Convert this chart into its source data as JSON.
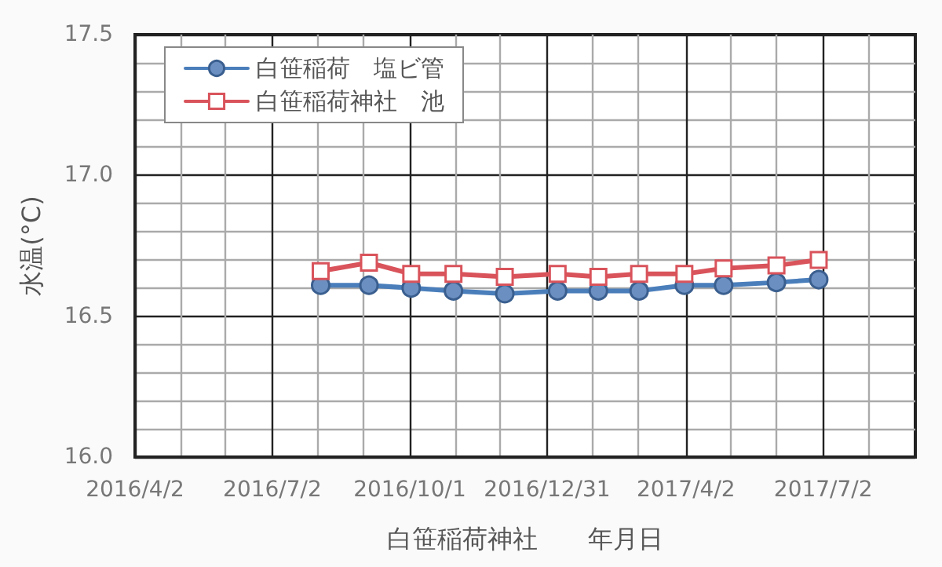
{
  "chart_data": {
    "type": "line",
    "xlabel": "白笹稲荷神社　　年月日",
    "ylabel": "水温(°C)",
    "x": [
      "2016-08-03",
      "2016-09-04",
      "2016-10-02",
      "2016-10-30",
      "2016-12-03",
      "2017-01-07",
      "2017-02-03",
      "2017-03-02",
      "2017-04-01",
      "2017-04-27",
      "2017-06-01",
      "2017-06-29"
    ],
    "series": [
      {
        "name": "白笹稲荷　塩ビ管",
        "color": "#4a7ebb",
        "marker": "circle",
        "values": [
          16.61,
          16.61,
          16.6,
          16.59,
          16.58,
          16.59,
          16.59,
          16.59,
          16.61,
          16.61,
          16.62,
          16.63
        ]
      },
      {
        "name": "白笹稲荷神社　池",
        "color": "#d9535b",
        "marker": "square",
        "values": [
          16.66,
          16.69,
          16.65,
          16.65,
          16.64,
          16.65,
          16.64,
          16.65,
          16.65,
          16.67,
          16.68,
          16.7
        ]
      }
    ],
    "xlim": [
      "2016-04-02",
      "2017-09-01"
    ],
    "xticks": [
      {
        "value": "2016-04-02",
        "label": "2016/4/2"
      },
      {
        "value": "2016-05-02",
        "label": null
      },
      {
        "value": "2016-06-01",
        "label": null
      },
      {
        "value": "2016-07-02",
        "label": "2016/7/2"
      },
      {
        "value": "2016-08-01",
        "label": null
      },
      {
        "value": "2016-08-31",
        "label": null
      },
      {
        "value": "2016-10-01",
        "label": "2016/10/1"
      },
      {
        "value": "2016-10-31",
        "label": null
      },
      {
        "value": "2016-11-30",
        "label": null
      },
      {
        "value": "2016-12-31",
        "label": "2016/12/31"
      },
      {
        "value": "2017-01-30",
        "label": null
      },
      {
        "value": "2017-03-01",
        "label": null
      },
      {
        "value": "2017-04-02",
        "label": "2017/4/2"
      },
      {
        "value": "2017-05-02",
        "label": null
      },
      {
        "value": "2017-06-01",
        "label": null
      },
      {
        "value": "2017-07-02",
        "label": "2017/7/2"
      },
      {
        "value": "2017-08-01",
        "label": null
      }
    ],
    "ylim": [
      16.0,
      17.5
    ],
    "yticks": [
      {
        "value": 16.0,
        "label": "16.0"
      },
      {
        "value": 16.1,
        "label": null
      },
      {
        "value": 16.2,
        "label": null
      },
      {
        "value": 16.3,
        "label": null
      },
      {
        "value": 16.4,
        "label": null
      },
      {
        "value": 16.5,
        "label": "16.5"
      },
      {
        "value": 16.6,
        "label": null
      },
      {
        "value": 16.7,
        "label": null
      },
      {
        "value": 16.8,
        "label": null
      },
      {
        "value": 16.9,
        "label": null
      },
      {
        "value": 17.0,
        "label": "17.0"
      },
      {
        "value": 17.1,
        "label": null
      },
      {
        "value": 17.2,
        "label": null
      },
      {
        "value": 17.3,
        "label": null
      },
      {
        "value": 17.4,
        "label": null
      },
      {
        "value": 17.5,
        "label": "17.5"
      }
    ],
    "grid": true,
    "legend": "top left",
    "line_style": "solid"
  }
}
